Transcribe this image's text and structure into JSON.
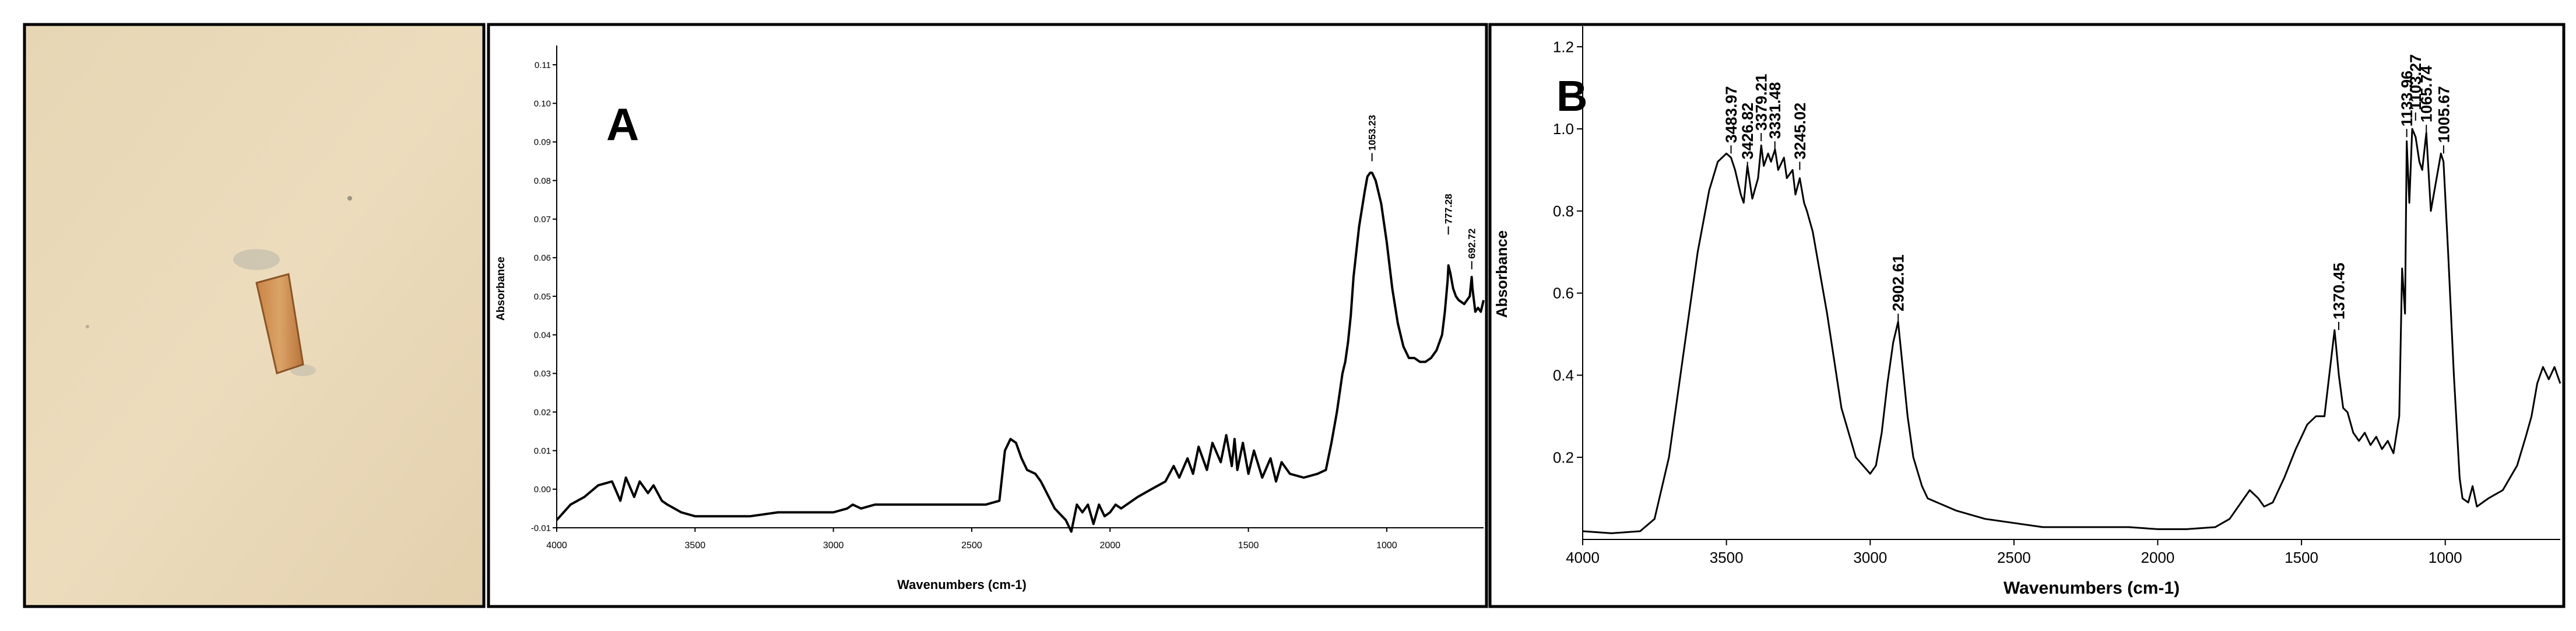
{
  "chart_data": [
    {
      "type": "line",
      "panel_label": "A",
      "xlabel": "Wavenumbers (cm-1)",
      "ylabel": "Absorbance",
      "xlim": [
        4000,
        650
      ],
      "ylim": [
        -0.01,
        0.115
      ],
      "x_ticks": [
        4000,
        3500,
        3000,
        2500,
        2000,
        1500,
        1000
      ],
      "y_ticks": [
        -0.01,
        0.0,
        0.01,
        0.02,
        0.03,
        0.04,
        0.05,
        0.06,
        0.07,
        0.08,
        0.09,
        0.1,
        0.11
      ],
      "y_tick_labels": [
        "-0.01",
        "0.00",
        "0.01",
        "0.02",
        "0.03",
        "0.04",
        "0.05",
        "0.06",
        "0.07",
        "0.08",
        "0.09",
        "0.10",
        "0.11"
      ],
      "peak_labels": [
        {
          "x": 1053.23,
          "y": 0.085,
          "label": "1053.23"
        },
        {
          "x": 777.28,
          "y": 0.066,
          "label": "777.28"
        },
        {
          "x": 692.72,
          "y": 0.057,
          "label": "692.72"
        }
      ],
      "series": [
        {
          "x": [
            4000,
            3950,
            3900,
            3850,
            3800,
            3770,
            3750,
            3720,
            3700,
            3670,
            3650,
            3620,
            3600,
            3550,
            3500,
            3400,
            3300,
            3200,
            3100,
            3000,
            2950,
            2930,
            2900,
            2850,
            2800,
            2700,
            2600,
            2500,
            2450,
            2400,
            2380,
            2360,
            2340,
            2320,
            2300,
            2270,
            2250,
            2200,
            2160,
            2140,
            2120,
            2100,
            2080,
            2060,
            2040,
            2020,
            2000,
            1980,
            1960,
            1900,
            1850,
            1800,
            1770,
            1750,
            1720,
            1700,
            1680,
            1650,
            1630,
            1600,
            1580,
            1560,
            1550,
            1540,
            1520,
            1500,
            1480,
            1450,
            1420,
            1400,
            1380,
            1350,
            1300,
            1250,
            1220,
            1200,
            1180,
            1170,
            1160,
            1150,
            1140,
            1130,
            1120,
            1100,
            1080,
            1070,
            1060,
            1053,
            1040,
            1020,
            1000,
            980,
            960,
            940,
            920,
            900,
            880,
            860,
            840,
            820,
            800,
            790,
            780,
            777,
            770,
            760,
            750,
            740,
            720,
            700,
            693,
            690,
            680,
            670,
            660,
            650
          ],
          "y": [
            -0.008,
            -0.004,
            -0.002,
            0.001,
            0.002,
            -0.003,
            0.003,
            -0.002,
            0.002,
            -0.001,
            0.001,
            -0.003,
            -0.004,
            -0.006,
            -0.007,
            -0.007,
            -0.007,
            -0.006,
            -0.006,
            -0.006,
            -0.005,
            -0.004,
            -0.005,
            -0.004,
            -0.004,
            -0.004,
            -0.004,
            -0.004,
            -0.004,
            -0.003,
            0.01,
            0.013,
            0.012,
            0.008,
            0.005,
            0.004,
            0.002,
            -0.005,
            -0.008,
            -0.011,
            -0.004,
            -0.006,
            -0.004,
            -0.009,
            -0.004,
            -0.007,
            -0.006,
            -0.004,
            -0.005,
            -0.002,
            0.0,
            0.002,
            0.006,
            0.003,
            0.008,
            0.004,
            0.011,
            0.005,
            0.012,
            0.007,
            0.014,
            0.006,
            0.013,
            0.005,
            0.012,
            0.004,
            0.01,
            0.003,
            0.008,
            0.002,
            0.007,
            0.004,
            0.003,
            0.004,
            0.005,
            0.012,
            0.02,
            0.025,
            0.03,
            0.033,
            0.038,
            0.045,
            0.055,
            0.068,
            0.077,
            0.081,
            0.082,
            0.082,
            0.08,
            0.074,
            0.064,
            0.052,
            0.043,
            0.037,
            0.034,
            0.034,
            0.033,
            0.033,
            0.034,
            0.036,
            0.04,
            0.046,
            0.054,
            0.058,
            0.056,
            0.052,
            0.05,
            0.049,
            0.048,
            0.05,
            0.055,
            0.052,
            0.046,
            0.047,
            0.046,
            0.049
          ]
        }
      ]
    },
    {
      "type": "line",
      "panel_label": "B",
      "xlabel": "Wavenumbers (cm-1)",
      "ylabel": "Absorbance",
      "xlim": [
        4000,
        600
      ],
      "ylim": [
        0.0,
        1.25
      ],
      "x_ticks": [
        4000,
        3500,
        3000,
        2500,
        2000,
        1500,
        1000
      ],
      "y_ticks": [
        0.2,
        0.4,
        0.6,
        0.8,
        1.0,
        1.2
      ],
      "y_tick_labels": [
        "0.2",
        "0.4",
        "0.6",
        "0.8",
        "1.0",
        "1.2"
      ],
      "peak_labels": [
        {
          "x": 3483.97,
          "y": 0.94,
          "label": "3483.97"
        },
        {
          "x": 3426.82,
          "y": 0.9,
          "label": "3426.82"
        },
        {
          "x": 3379.21,
          "y": 0.97,
          "label": "3379.21"
        },
        {
          "x": 3331.48,
          "y": 0.95,
          "label": "3331.48"
        },
        {
          "x": 3245.02,
          "y": 0.9,
          "label": "3245.02"
        },
        {
          "x": 2902.61,
          "y": 0.53,
          "label": "2902.61"
        },
        {
          "x": 1370.45,
          "y": 0.51,
          "label": "1370.45"
        },
        {
          "x": 1133.96,
          "y": 0.98,
          "label": "1133.96"
        },
        {
          "x": 1103.27,
          "y": 1.02,
          "label": "1103.27"
        },
        {
          "x": 1065.74,
          "y": 0.99,
          "label": "1065.74"
        },
        {
          "x": 1005.67,
          "y": 0.94,
          "label": "1005.67"
        }
      ],
      "series": [
        {
          "x": [
            4000,
            3900,
            3800,
            3750,
            3700,
            3650,
            3600,
            3560,
            3530,
            3500,
            3484,
            3470,
            3450,
            3440,
            3427,
            3410,
            3390,
            3379,
            3370,
            3355,
            3345,
            3331,
            3320,
            3300,
            3290,
            3270,
            3260,
            3245,
            3230,
            3220,
            3200,
            3150,
            3100,
            3050,
            3000,
            2980,
            2960,
            2940,
            2920,
            2903,
            2890,
            2870,
            2850,
            2820,
            2800,
            2700,
            2600,
            2500,
            2400,
            2300,
            2200,
            2100,
            2000,
            1900,
            1800,
            1750,
            1700,
            1680,
            1650,
            1630,
            1600,
            1560,
            1520,
            1480,
            1450,
            1420,
            1400,
            1385,
            1370,
            1355,
            1340,
            1320,
            1300,
            1280,
            1260,
            1240,
            1220,
            1200,
            1180,
            1160,
            1150,
            1140,
            1134,
            1125,
            1115,
            1103,
            1090,
            1080,
            1066,
            1050,
            1030,
            1015,
            1006,
            990,
            970,
            950,
            940,
            920,
            905,
            890,
            870,
            850,
            800,
            750,
            720,
            700,
            680,
            660,
            640,
            620,
            600
          ],
          "y": [
            0.02,
            0.015,
            0.02,
            0.05,
            0.2,
            0.45,
            0.7,
            0.85,
            0.92,
            0.94,
            0.93,
            0.9,
            0.84,
            0.82,
            0.91,
            0.83,
            0.88,
            0.96,
            0.91,
            0.94,
            0.92,
            0.95,
            0.9,
            0.93,
            0.88,
            0.9,
            0.84,
            0.88,
            0.82,
            0.8,
            0.75,
            0.55,
            0.32,
            0.2,
            0.16,
            0.18,
            0.26,
            0.38,
            0.48,
            0.53,
            0.44,
            0.3,
            0.2,
            0.13,
            0.1,
            0.07,
            0.05,
            0.04,
            0.03,
            0.03,
            0.03,
            0.03,
            0.025,
            0.025,
            0.03,
            0.05,
            0.1,
            0.12,
            0.1,
            0.08,
            0.09,
            0.15,
            0.22,
            0.28,
            0.3,
            0.3,
            0.42,
            0.51,
            0.4,
            0.32,
            0.31,
            0.26,
            0.24,
            0.26,
            0.23,
            0.25,
            0.22,
            0.24,
            0.21,
            0.3,
            0.66,
            0.55,
            0.97,
            0.82,
            1.0,
            0.98,
            0.92,
            0.9,
            0.99,
            0.8,
            0.88,
            0.94,
            0.92,
            0.7,
            0.4,
            0.15,
            0.1,
            0.09,
            0.13,
            0.08,
            0.09,
            0.1,
            0.12,
            0.18,
            0.25,
            0.3,
            0.38,
            0.42,
            0.39,
            0.42,
            0.38
          ]
        }
      ]
    }
  ]
}
